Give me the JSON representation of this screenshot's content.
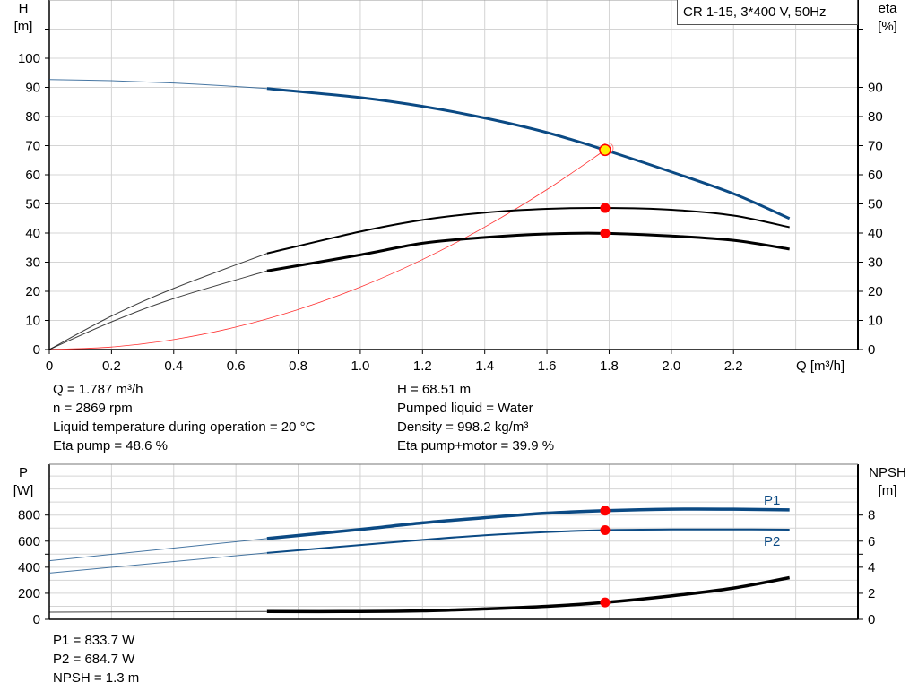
{
  "chart_data": [
    {
      "type": "line",
      "title": "CR 1-15, 3*400 V, 50Hz",
      "xlabel": "Q [m³/h]",
      "ylabel": "H\n[m]",
      "ylabel_left_name": "H",
      "ylabel_left_unit": "[m]",
      "ylabel_right_name": "eta",
      "ylabel_right_unit": "[%]",
      "xlim": [
        0,
        2.6
      ],
      "ylim": [
        0,
        120
      ],
      "x_ticks": [
        "0",
        "0.2",
        "0.4",
        "0.6",
        "0.8",
        "1.0",
        "1.2",
        "1.4",
        "1.6",
        "1.8",
        "2.0",
        "2.2"
      ],
      "y_ticks_left": [
        "0",
        "10",
        "20",
        "30",
        "40",
        "50",
        "60",
        "70",
        "80",
        "90",
        "100"
      ],
      "y_ticks_right": [
        "0",
        "10",
        "20",
        "30",
        "40",
        "50",
        "60",
        "70",
        "80",
        "90"
      ],
      "grid": true,
      "series": [
        {
          "key": "H",
          "color": "#0b4a84",
          "x": [
            0,
            0.2,
            0.4,
            0.6,
            0.7,
            1.0,
            1.2,
            1.4,
            1.6,
            1.787,
            2.0,
            2.2,
            2.38
          ],
          "y": [
            92.7,
            92.3,
            91.5,
            90.3,
            89.6,
            86.5,
            83.5,
            79.5,
            74.5,
            68.5,
            61,
            53.5,
            45
          ]
        },
        {
          "key": "eta_pump",
          "color": "#000000",
          "x": [
            0,
            0.2,
            0.4,
            0.7,
            1.0,
            1.2,
            1.4,
            1.6,
            1.787,
            2.0,
            2.2,
            2.38
          ],
          "y": [
            0,
            11.5,
            21,
            33,
            40.5,
            44.5,
            47,
            48.3,
            48.6,
            48,
            46,
            42
          ]
        },
        {
          "key": "eta_pump_motor",
          "color": "#000000",
          "x": [
            0,
            0.2,
            0.4,
            0.7,
            1.0,
            1.2,
            1.4,
            1.6,
            1.787,
            2.0,
            2.2,
            2.38
          ],
          "y": [
            0,
            9.5,
            17.5,
            27,
            32.5,
            36.5,
            38.5,
            39.7,
            39.9,
            39,
            37.5,
            34.5
          ]
        },
        {
          "key": "system",
          "color": "#ff3030",
          "x": [
            0,
            0.2,
            0.4,
            0.6,
            0.8,
            1.0,
            1.2,
            1.4,
            1.6,
            1.787
          ],
          "y": [
            0,
            0.86,
            3.43,
            7.72,
            13.73,
            21.45,
            30.9,
            42.05,
            54.92,
            68.5
          ]
        }
      ],
      "duty_points": [
        {
          "x": 1.787,
          "y": 68.51,
          "kind": "H"
        },
        {
          "x": 1.787,
          "y": 48.6,
          "kind": "eta_pump"
        },
        {
          "x": 1.787,
          "y": 39.9,
          "kind": "eta_pump_motor"
        }
      ],
      "readout": {
        "left": [
          "Q = 1.787 m³/h",
          "n = 2869 rpm",
          "Liquid temperature during operation = 20 °C",
          "Eta pump = 48.6 %"
        ],
        "right": [
          "H = 68.51 m",
          "Pumped liquid = Water",
          "Density = 998.2 kg/m³",
          "Eta pump+motor = 39.9 %"
        ]
      }
    },
    {
      "type": "line",
      "ylabel_left_name": "P",
      "ylabel_left_unit": "[W]",
      "ylabel_right_name": "NPSH",
      "ylabel_right_unit": "[m]",
      "xlim": [
        0,
        2.6
      ],
      "ylim": [
        0,
        1190
      ],
      "y_ticks_left": [
        "0",
        "200",
        "400",
        "600",
        "800"
      ],
      "y_ticks_right": [
        "0",
        "2",
        "4",
        "6",
        "8"
      ],
      "grid": true,
      "series": [
        {
          "name": "P1",
          "color": "#0b4a84",
          "x": [
            0,
            0.7,
            1.0,
            1.2,
            1.4,
            1.6,
            1.787,
            2.0,
            2.2,
            2.38
          ],
          "y": [
            450,
            620,
            690,
            740,
            780,
            815,
            833.7,
            845,
            845,
            840
          ]
        },
        {
          "name": "P2",
          "color": "#0b4a84",
          "x": [
            0,
            0.7,
            1.0,
            1.2,
            1.4,
            1.6,
            1.787,
            2.0,
            2.2,
            2.38
          ],
          "y": [
            355,
            510,
            570,
            610,
            645,
            670,
            684.7,
            690,
            690,
            688
          ]
        },
        {
          "key": "NPSH",
          "color": "#000000",
          "unit": "m",
          "x": [
            0,
            0.7,
            1.0,
            1.2,
            1.4,
            1.6,
            1.787,
            2.0,
            2.2,
            2.38
          ],
          "y": [
            0.55,
            0.6,
            0.6,
            0.65,
            0.8,
            1.0,
            1.3,
            1.8,
            2.4,
            3.2
          ]
        }
      ],
      "duty_points": [
        {
          "x": 1.787,
          "y": 833.7
        },
        {
          "x": 1.787,
          "y": 684.7
        },
        {
          "x": 1.787,
          "y": 1.3,
          "unit": "m"
        }
      ],
      "readout": [
        "P1 = 833.7 W",
        "P2 = 684.7 W",
        "NPSH = 1.3 m"
      ]
    }
  ]
}
